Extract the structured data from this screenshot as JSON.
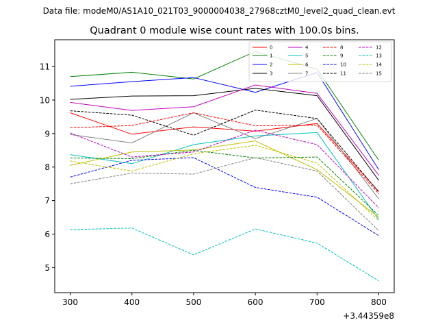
{
  "chart_data": {
    "type": "line",
    "suptitle": "Data file: modeM0/AS1A10_021T03_9000004038_27968cztM0_level2_quad_clean.evt",
    "title": "Quadrant 0 module wise count rates with 100.0s bins.",
    "xlabel": "",
    "ylabel": "",
    "x_offset_label": "+3.44359e8",
    "x": [
      300,
      400,
      500,
      600,
      700,
      800
    ],
    "xlim": [
      275,
      825
    ],
    "ylim": [
      4.25,
      11.8
    ],
    "xticks": [
      300,
      400,
      500,
      600,
      700,
      800
    ],
    "yticks": [
      5,
      6,
      7,
      8,
      9,
      10,
      11
    ],
    "grid": false,
    "legend_position": "top-right",
    "legend_columns": 4,
    "series": [
      {
        "name": "0",
        "color": "#ff0000",
        "dash": "solid",
        "values": [
          9.62,
          8.98,
          9.2,
          9.07,
          9.3,
          7.27
        ]
      },
      {
        "name": "1",
        "color": "#008000",
        "dash": "solid",
        "values": [
          10.7,
          10.83,
          10.63,
          11.45,
          10.92,
          8.2
        ]
      },
      {
        "name": "2",
        "color": "#0000ff",
        "dash": "solid",
        "values": [
          10.41,
          10.55,
          10.67,
          10.23,
          10.82,
          7.92
        ]
      },
      {
        "name": "3",
        "color": "#000000",
        "dash": "solid",
        "values": [
          10.02,
          10.12,
          10.13,
          10.35,
          10.13,
          7.6
        ]
      },
      {
        "name": "4",
        "color": "#bf00bf",
        "dash": "solid",
        "values": [
          9.93,
          9.69,
          9.8,
          10.45,
          10.2,
          7.75
        ]
      },
      {
        "name": "5",
        "color": "#00bfbf",
        "dash": "solid",
        "values": [
          8.37,
          8.1,
          8.67,
          8.93,
          9.03,
          6.43
        ]
      },
      {
        "name": "6",
        "color": "#bfbf00",
        "dash": "solid",
        "values": [
          8.05,
          8.45,
          8.51,
          8.78,
          7.92,
          6.5
        ]
      },
      {
        "name": "7",
        "color": "#808080",
        "dash": "solid",
        "values": [
          8.97,
          8.72,
          9.62,
          8.85,
          9.45,
          7.05
        ]
      },
      {
        "name": "8",
        "color": "#ff0000",
        "dash": "dashed",
        "values": [
          9.17,
          9.24,
          9.62,
          9.23,
          9.25,
          7.2
        ]
      },
      {
        "name": "9",
        "color": "#008000",
        "dash": "dashed",
        "values": [
          8.27,
          8.25,
          8.5,
          8.27,
          8.3,
          6.55
        ]
      },
      {
        "name": "10",
        "color": "#0000ff",
        "dash": "dashed",
        "values": [
          7.7,
          8.2,
          8.28,
          7.39,
          7.1,
          5.95
        ]
      },
      {
        "name": "11",
        "color": "#000000",
        "dash": "dashed",
        "values": [
          9.68,
          9.55,
          8.95,
          9.7,
          9.45,
          7.25
        ]
      },
      {
        "name": "12",
        "color": "#bf00bf",
        "dash": "dashed",
        "values": [
          9.02,
          8.3,
          8.45,
          9.1,
          8.67,
          6.78
        ]
      },
      {
        "name": "13",
        "color": "#00bfbf",
        "dash": "dashed",
        "values": [
          6.13,
          6.18,
          5.38,
          6.15,
          5.73,
          4.6
        ]
      },
      {
        "name": "14",
        "color": "#bfbf00",
        "dash": "dashed",
        "values": [
          8.18,
          7.88,
          8.4,
          8.65,
          8.12,
          6.4
        ]
      },
      {
        "name": "15",
        "color": "#808080",
        "dash": "dashed",
        "values": [
          7.5,
          7.82,
          7.79,
          8.28,
          7.88,
          6.1
        ]
      }
    ]
  }
}
